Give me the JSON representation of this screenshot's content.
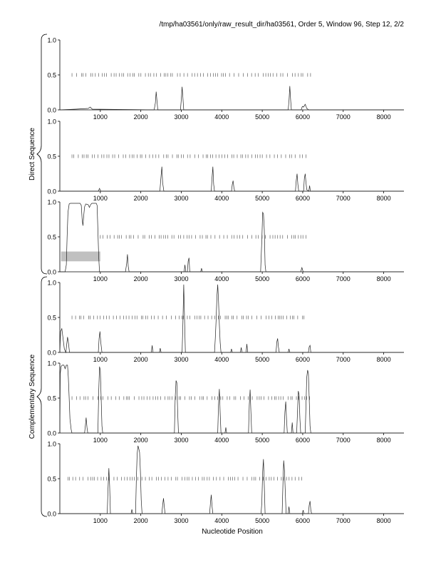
{
  "header": "/tmp/ha03561/only/raw_result_dir/ha03561, Order 5, Window 96, Step 12, 2/2",
  "xlabel": "Nucleotide Position",
  "group_labels": [
    "Direct Sequence",
    "Complementary Sequence"
  ],
  "colors": {
    "trace": "#222222",
    "axis": "#000000",
    "tick": "#444444",
    "highlight": "#c0c0c0"
  },
  "chart_data": {
    "type": "line",
    "title": "",
    "xlabel": "Nucleotide Position",
    "ylabel": "",
    "xlim": [
      0,
      8500
    ],
    "ylim": [
      0,
      1
    ],
    "x_ticks": [
      1000,
      2000,
      3000,
      4000,
      5000,
      6000,
      7000,
      8000
    ],
    "y_ticks": [
      0.0,
      0.5,
      1.0
    ],
    "grid": false,
    "legend": "none",
    "panels": [
      {
        "group": "Direct Sequence",
        "marks_at": 0.5,
        "marks_range": [
          300,
          6200
        ],
        "highlight": null,
        "series": [
          [
            0,
            0.0
          ],
          [
            400,
            0.01
          ],
          [
            700,
            0.02
          ],
          [
            750,
            0.04
          ],
          [
            800,
            0.01
          ],
          [
            2330,
            0.0
          ],
          [
            2360,
            0.1
          ],
          [
            2380,
            0.26
          ],
          [
            2400,
            0.12
          ],
          [
            2420,
            0.0
          ],
          [
            2980,
            0.0
          ],
          [
            3000,
            0.15
          ],
          [
            3020,
            0.33
          ],
          [
            3040,
            0.18
          ],
          [
            3060,
            0.0
          ],
          [
            5640,
            0.0
          ],
          [
            5660,
            0.12
          ],
          [
            5680,
            0.34
          ],
          [
            5700,
            0.15
          ],
          [
            5720,
            0.0
          ],
          [
            5960,
            0.0
          ],
          [
            5990,
            0.05
          ],
          [
            6020,
            0.04
          ],
          [
            6060,
            0.08
          ],
          [
            6100,
            0.02
          ],
          [
            6150,
            0.0
          ],
          [
            8500,
            0.0
          ]
        ]
      },
      {
        "group": "Direct Sequence",
        "marks_at": 0.5,
        "marks_range": [
          300,
          6100
        ],
        "highlight": null,
        "series": [
          [
            0,
            0.0
          ],
          [
            950,
            0.0
          ],
          [
            980,
            0.04
          ],
          [
            1010,
            0.0
          ],
          [
            2470,
            0.0
          ],
          [
            2500,
            0.22
          ],
          [
            2520,
            0.35
          ],
          [
            2540,
            0.12
          ],
          [
            2570,
            0.0
          ],
          [
            3740,
            0.0
          ],
          [
            3760,
            0.2
          ],
          [
            3780,
            0.35
          ],
          [
            3800,
            0.1
          ],
          [
            3820,
            0.0
          ],
          [
            4240,
            0.0
          ],
          [
            4260,
            0.1
          ],
          [
            4280,
            0.15
          ],
          [
            4300,
            0.05
          ],
          [
            4320,
            0.0
          ],
          [
            5820,
            0.0
          ],
          [
            5840,
            0.15
          ],
          [
            5860,
            0.25
          ],
          [
            5880,
            0.1
          ],
          [
            5900,
            0.0
          ],
          [
            6020,
            0.0
          ],
          [
            6040,
            0.18
          ],
          [
            6060,
            0.25
          ],
          [
            6080,
            0.12
          ],
          [
            6100,
            0.02
          ],
          [
            6150,
            0.0
          ],
          [
            6170,
            0.08
          ],
          [
            6190,
            0.0
          ],
          [
            8500,
            0.0
          ]
        ]
      },
      {
        "group": "Direct Sequence",
        "marks_at": 0.5,
        "marks_range": [
          1000,
          6100
        ],
        "highlight": {
          "x": [
            30,
            1000
          ],
          "y": [
            0.15,
            0.29
          ]
        },
        "series": [
          [
            0,
            0.0
          ],
          [
            130,
            0.0
          ],
          [
            160,
            0.1
          ],
          [
            180,
            0.5
          ],
          [
            200,
            0.85
          ],
          [
            230,
            0.97
          ],
          [
            260,
            0.98
          ],
          [
            500,
            0.98
          ],
          [
            530,
            0.95
          ],
          [
            550,
            0.75
          ],
          [
            570,
            0.66
          ],
          [
            590,
            0.8
          ],
          [
            610,
            0.93
          ],
          [
            640,
            0.97
          ],
          [
            700,
            0.96
          ],
          [
            730,
            0.92
          ],
          [
            760,
            0.96
          ],
          [
            790,
            0.98
          ],
          [
            900,
            0.98
          ],
          [
            920,
            0.95
          ],
          [
            940,
            0.6
          ],
          [
            960,
            0.2
          ],
          [
            980,
            0.0
          ],
          [
            1620,
            0.0
          ],
          [
            1650,
            0.12
          ],
          [
            1670,
            0.25
          ],
          [
            1690,
            0.08
          ],
          [
            1710,
            0.0
          ],
          [
            3070,
            0.0
          ],
          [
            3090,
            0.1
          ],
          [
            3110,
            0.0
          ],
          [
            3150,
            0.0
          ],
          [
            3170,
            0.15
          ],
          [
            3190,
            0.2
          ],
          [
            3210,
            0.0
          ],
          [
            3480,
            0.0
          ],
          [
            3500,
            0.05
          ],
          [
            3520,
            0.0
          ],
          [
            4960,
            0.0
          ],
          [
            4990,
            0.45
          ],
          [
            5010,
            0.85
          ],
          [
            5030,
            0.83
          ],
          [
            5050,
            0.6
          ],
          [
            5070,
            0.1
          ],
          [
            5090,
            0.0
          ],
          [
            5950,
            0.0
          ],
          [
            5980,
            0.06
          ],
          [
            6010,
            0.0
          ],
          [
            8500,
            0.0
          ]
        ]
      },
      {
        "group": "Complementary Sequence",
        "marks_at": 0.5,
        "marks_range": [
          300,
          6100
        ],
        "highlight": null,
        "series": [
          [
            0,
            0.0
          ],
          [
            20,
            0.3
          ],
          [
            50,
            0.34
          ],
          [
            80,
            0.2
          ],
          [
            110,
            0.05
          ],
          [
            150,
            0.0
          ],
          [
            170,
            0.12
          ],
          [
            190,
            0.22
          ],
          [
            210,
            0.15
          ],
          [
            240,
            0.0
          ],
          [
            950,
            0.0
          ],
          [
            970,
            0.2
          ],
          [
            990,
            0.3
          ],
          [
            1010,
            0.15
          ],
          [
            1040,
            0.0
          ],
          [
            2260,
            0.0
          ],
          [
            2280,
            0.1
          ],
          [
            2300,
            0.0
          ],
          [
            2460,
            0.0
          ],
          [
            2480,
            0.06
          ],
          [
            2500,
            0.0
          ],
          [
            3020,
            0.0
          ],
          [
            3040,
            0.4
          ],
          [
            3060,
            0.97
          ],
          [
            3080,
            0.5
          ],
          [
            3100,
            0.0
          ],
          [
            3820,
            0.0
          ],
          [
            3840,
            0.2
          ],
          [
            3860,
            0.45
          ],
          [
            3880,
            0.8
          ],
          [
            3900,
            0.97
          ],
          [
            3920,
            0.75
          ],
          [
            3940,
            0.4
          ],
          [
            3960,
            0.15
          ],
          [
            3980,
            0.0
          ],
          [
            4220,
            0.0
          ],
          [
            4240,
            0.05
          ],
          [
            4260,
            0.0
          ],
          [
            4460,
            0.0
          ],
          [
            4480,
            0.07
          ],
          [
            4500,
            0.0
          ],
          [
            4600,
            0.0
          ],
          [
            4620,
            0.12
          ],
          [
            4640,
            0.0
          ],
          [
            5340,
            0.0
          ],
          [
            5360,
            0.15
          ],
          [
            5380,
            0.2
          ],
          [
            5400,
            0.08
          ],
          [
            5420,
            0.0
          ],
          [
            5640,
            0.0
          ],
          [
            5660,
            0.05
          ],
          [
            5680,
            0.0
          ],
          [
            6140,
            0.0
          ],
          [
            6160,
            0.08
          ],
          [
            6180,
            0.1
          ],
          [
            6200,
            0.0
          ],
          [
            8500,
            0.0
          ]
        ]
      },
      {
        "group": "Complementary Sequence",
        "marks_at": 0.5,
        "marks_range": [
          300,
          6200
        ],
        "highlight": null,
        "series": [
          [
            0,
            0.0
          ],
          [
            10,
            0.85
          ],
          [
            30,
            0.95
          ],
          [
            60,
            0.97
          ],
          [
            100,
            0.97
          ],
          [
            130,
            0.92
          ],
          [
            160,
            0.97
          ],
          [
            190,
            0.97
          ],
          [
            210,
            0.8
          ],
          [
            230,
            0.5
          ],
          [
            250,
            0.2
          ],
          [
            280,
            0.05
          ],
          [
            300,
            0.0
          ],
          [
            610,
            0.0
          ],
          [
            630,
            0.1
          ],
          [
            650,
            0.22
          ],
          [
            670,
            0.08
          ],
          [
            690,
            0.0
          ],
          [
            940,
            0.0
          ],
          [
            960,
            0.6
          ],
          [
            980,
            0.95
          ],
          [
            1000,
            0.9
          ],
          [
            1020,
            0.5
          ],
          [
            1040,
            0.1
          ],
          [
            1060,
            0.0
          ],
          [
            2830,
            0.0
          ],
          [
            2850,
            0.5
          ],
          [
            2870,
            0.75
          ],
          [
            2890,
            0.72
          ],
          [
            2910,
            0.3
          ],
          [
            2930,
            0.0
          ],
          [
            3900,
            0.0
          ],
          [
            3920,
            0.4
          ],
          [
            3940,
            0.63
          ],
          [
            3960,
            0.3
          ],
          [
            3980,
            0.0
          ],
          [
            4080,
            0.0
          ],
          [
            4100,
            0.08
          ],
          [
            4120,
            0.0
          ],
          [
            4660,
            0.0
          ],
          [
            4680,
            0.4
          ],
          [
            4700,
            0.62
          ],
          [
            4720,
            0.3
          ],
          [
            4740,
            0.0
          ],
          [
            5540,
            0.0
          ],
          [
            5560,
            0.3
          ],
          [
            5580,
            0.45
          ],
          [
            5600,
            0.2
          ],
          [
            5620,
            0.0
          ],
          [
            5720,
            0.0
          ],
          [
            5740,
            0.15
          ],
          [
            5760,
            0.0
          ],
          [
            5850,
            0.0
          ],
          [
            5870,
            0.3
          ],
          [
            5890,
            0.6
          ],
          [
            5910,
            0.55
          ],
          [
            5930,
            0.2
          ],
          [
            5950,
            0.0
          ],
          [
            6060,
            0.0
          ],
          [
            6080,
            0.4
          ],
          [
            6100,
            0.8
          ],
          [
            6120,
            0.9
          ],
          [
            6140,
            0.85
          ],
          [
            6160,
            0.5
          ],
          [
            6180,
            0.1
          ],
          [
            6200,
            0.0
          ],
          [
            8500,
            0.0
          ]
        ]
      },
      {
        "group": "Complementary Sequence",
        "marks_at": 0.5,
        "marks_range": [
          200,
          6000
        ],
        "highlight": null,
        "series": [
          [
            0,
            0.0
          ],
          [
            1170,
            0.0
          ],
          [
            1190,
            0.35
          ],
          [
            1210,
            0.65
          ],
          [
            1230,
            0.4
          ],
          [
            1250,
            0.0
          ],
          [
            1760,
            0.0
          ],
          [
            1780,
            0.06
          ],
          [
            1800,
            0.0
          ],
          [
            1870,
            0.0
          ],
          [
            1890,
            0.5
          ],
          [
            1910,
            0.85
          ],
          [
            1930,
            0.97
          ],
          [
            1950,
            0.93
          ],
          [
            1970,
            0.88
          ],
          [
            1990,
            0.6
          ],
          [
            2010,
            0.2
          ],
          [
            2030,
            0.0
          ],
          [
            2520,
            0.0
          ],
          [
            2540,
            0.12
          ],
          [
            2560,
            0.22
          ],
          [
            2580,
            0.1
          ],
          [
            2600,
            0.0
          ],
          [
            3700,
            0.0
          ],
          [
            3720,
            0.15
          ],
          [
            3740,
            0.27
          ],
          [
            3760,
            0.1
          ],
          [
            3780,
            0.0
          ],
          [
            4970,
            0.0
          ],
          [
            4990,
            0.15
          ],
          [
            5010,
            0.6
          ],
          [
            5030,
            0.78
          ],
          [
            5050,
            0.4
          ],
          [
            5070,
            0.0
          ],
          [
            5490,
            0.0
          ],
          [
            5510,
            0.4
          ],
          [
            5530,
            0.76
          ],
          [
            5550,
            0.6
          ],
          [
            5570,
            0.3
          ],
          [
            5590,
            0.0
          ],
          [
            5640,
            0.0
          ],
          [
            5660,
            0.1
          ],
          [
            5680,
            0.0
          ],
          [
            5990,
            0.0
          ],
          [
            6010,
            0.05
          ],
          [
            6030,
            0.0
          ],
          [
            6140,
            0.0
          ],
          [
            6160,
            0.12
          ],
          [
            6180,
            0.18
          ],
          [
            6200,
            0.05
          ],
          [
            6220,
            0.0
          ],
          [
            8500,
            0.0
          ]
        ]
      }
    ]
  }
}
